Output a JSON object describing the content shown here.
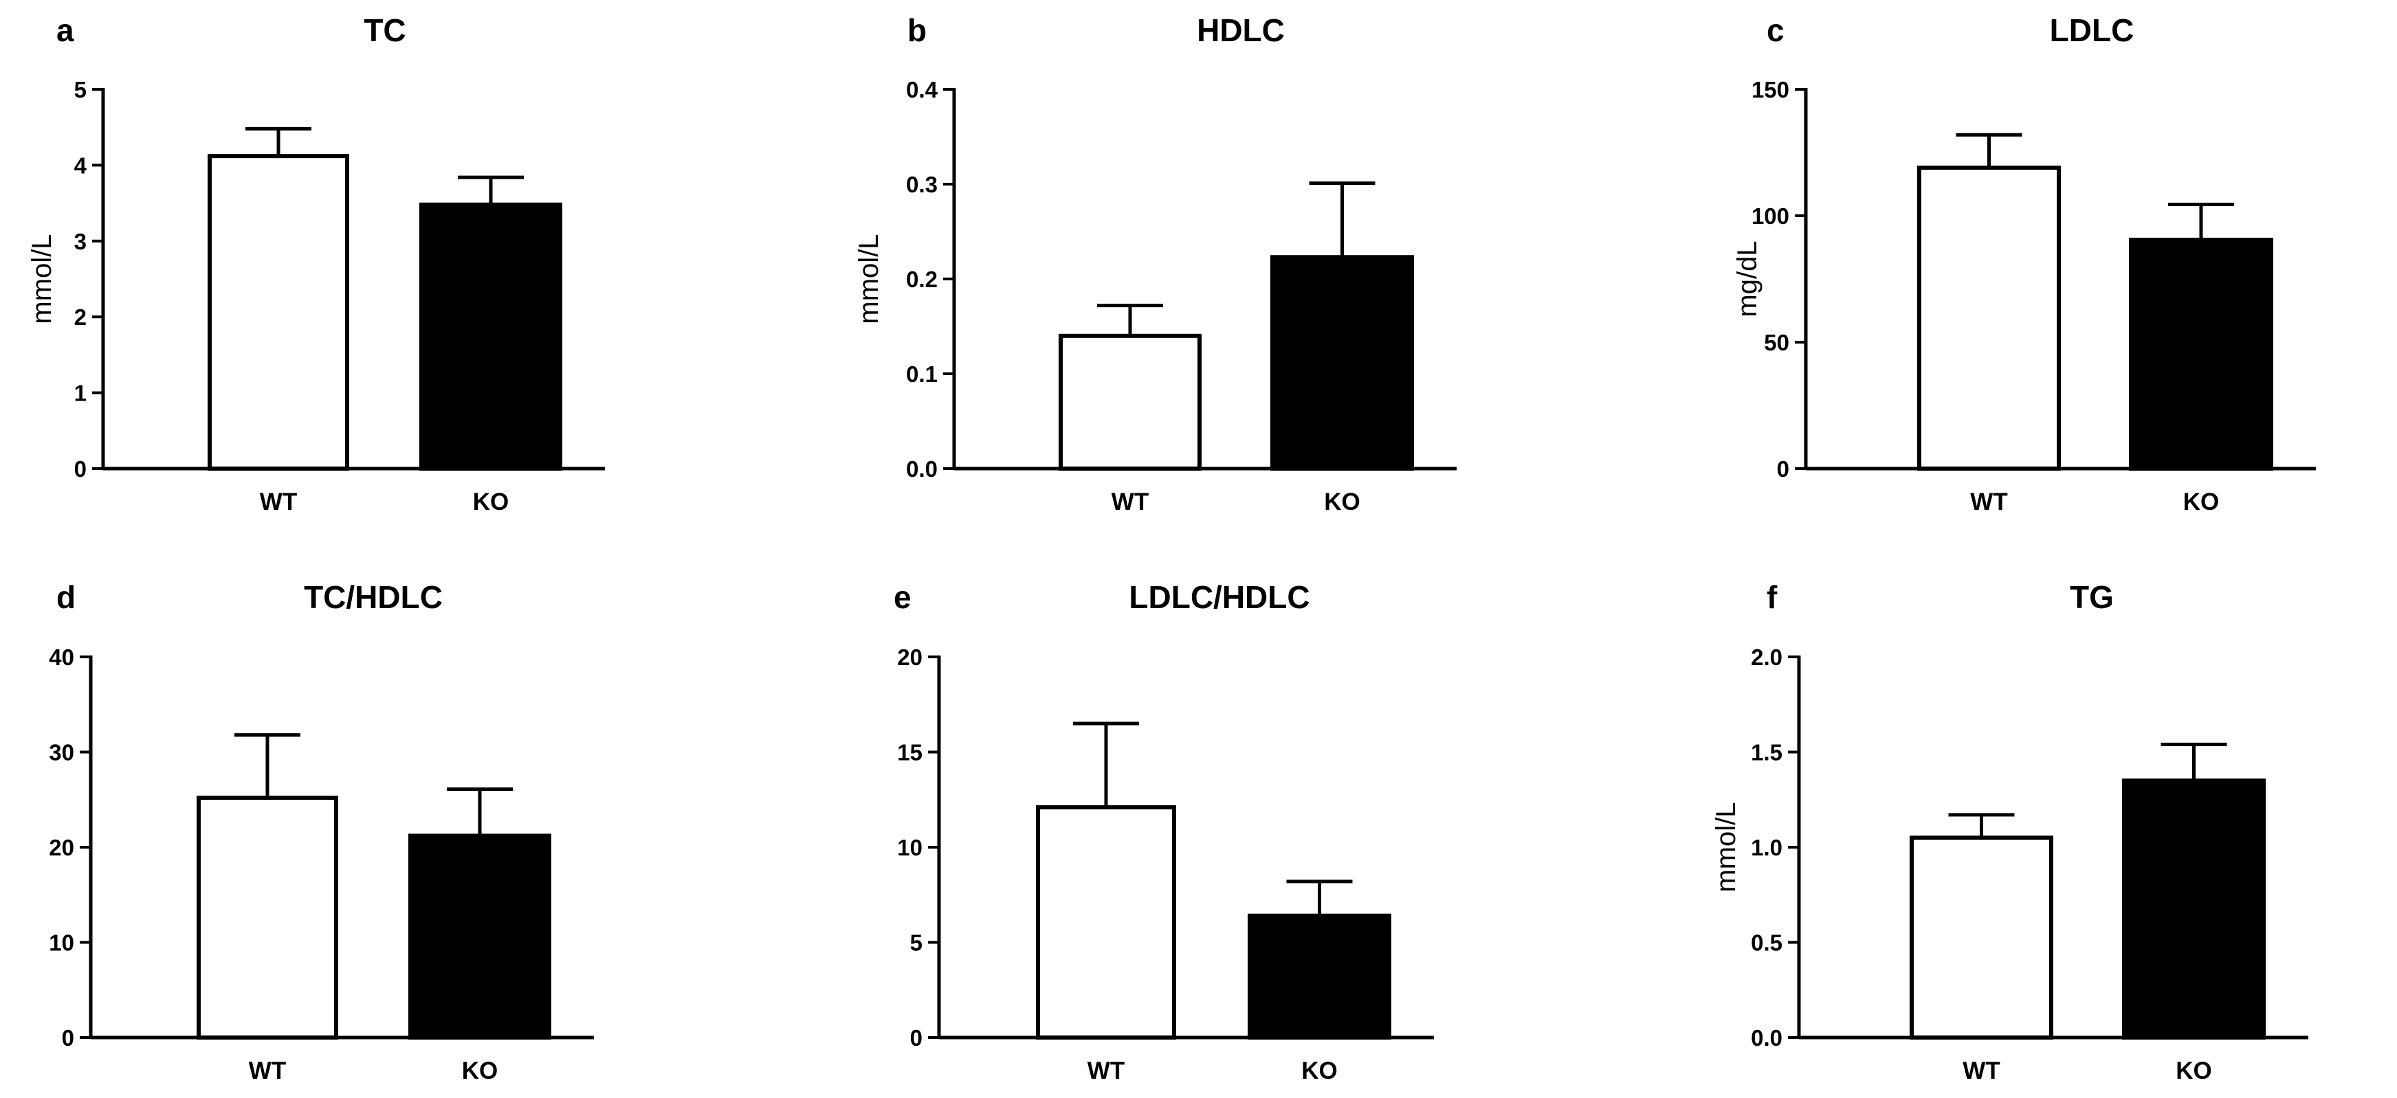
{
  "figure": {
    "panels_count": 6,
    "colors": {
      "wt_fill": "#ffffff",
      "ko_fill": "#000000",
      "stroke": "#000000"
    }
  },
  "chart_data": [
    {
      "panel": "a",
      "type": "bar",
      "title": "TC",
      "ylabel": "mmol/L",
      "xlabel": "",
      "categories": [
        "WT",
        "KO"
      ],
      "values": [
        4.12,
        3.48
      ],
      "errors": [
        0.36,
        0.36
      ],
      "ylim": [
        0,
        5
      ],
      "ticks": [
        0,
        1,
        2,
        3,
        4,
        5
      ],
      "tick_labels": [
        "0",
        "1",
        "2",
        "3",
        "4",
        "5"
      ]
    },
    {
      "panel": "b",
      "type": "bar",
      "title": "HDLC",
      "ylabel": "mmol/L",
      "xlabel": "",
      "categories": [
        "WT",
        "KO"
      ],
      "values": [
        0.14,
        0.223
      ],
      "errors": [
        0.032,
        0.078
      ],
      "ylim": [
        0,
        0.4
      ],
      "ticks": [
        0,
        0.1,
        0.2,
        0.3,
        0.4
      ],
      "tick_labels": [
        "0.0",
        "0.1",
        "0.2",
        "0.3",
        "0.4"
      ]
    },
    {
      "panel": "c",
      "type": "bar",
      "title": "LDLC",
      "ylabel": "mg/dL",
      "xlabel": "",
      "categories": [
        "WT",
        "KO"
      ],
      "values": [
        119,
        90.5
      ],
      "errors": [
        13,
        14
      ],
      "ylim": [
        0,
        150
      ],
      "ticks": [
        0,
        50,
        100,
        150
      ],
      "tick_labels": [
        "0",
        "50",
        "100",
        "150"
      ]
    },
    {
      "panel": "d",
      "type": "bar",
      "title": "TC/HDLC",
      "ylabel": "",
      "xlabel": "",
      "categories": [
        "WT",
        "KO"
      ],
      "values": [
        25.2,
        21.2
      ],
      "errors": [
        6.6,
        4.9
      ],
      "ylim": [
        0,
        40
      ],
      "ticks": [
        0,
        10,
        20,
        30,
        40
      ],
      "tick_labels": [
        "0",
        "10",
        "20",
        "30",
        "40"
      ]
    },
    {
      "panel": "e",
      "type": "bar",
      "title": "LDLC/HDLC",
      "ylabel": "",
      "xlabel": "",
      "categories": [
        "WT",
        "KO"
      ],
      "values": [
        12.1,
        6.4
      ],
      "errors": [
        4.4,
        1.8
      ],
      "ylim": [
        0,
        20
      ],
      "ticks": [
        0,
        5,
        10,
        15,
        20
      ],
      "tick_labels": [
        "0",
        "5",
        "10",
        "15",
        "20"
      ]
    },
    {
      "panel": "f",
      "type": "bar",
      "title": "TG",
      "ylabel": "mmol/L",
      "xlabel": "",
      "categories": [
        "WT",
        "KO"
      ],
      "values": [
        1.05,
        1.35
      ],
      "errors": [
        0.12,
        0.19
      ],
      "ylim": [
        0,
        2.0
      ],
      "ticks": [
        0,
        0.5,
        1.0,
        1.5,
        2.0
      ],
      "tick_labels": [
        "0.0",
        "0.5",
        "1.0",
        "1.5",
        "2.0"
      ]
    }
  ]
}
